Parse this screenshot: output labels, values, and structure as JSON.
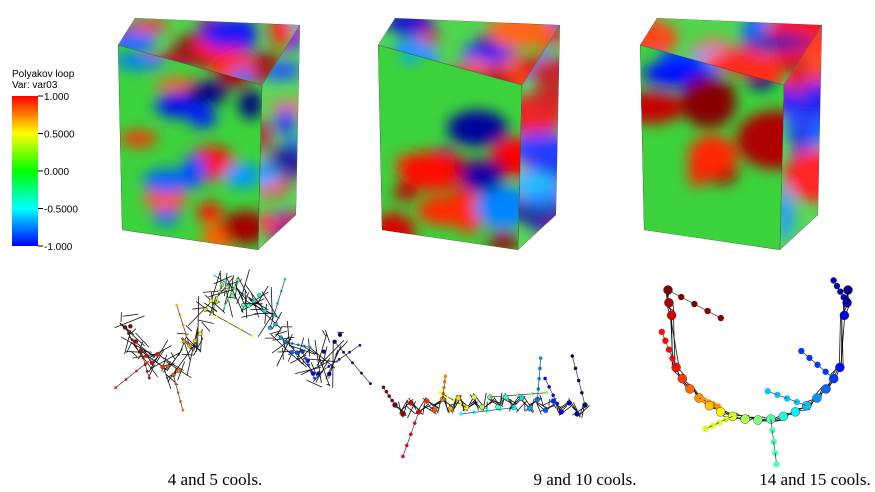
{
  "colorbar": {
    "title": "Polyakov loop",
    "variable": "Var: var03",
    "ticks": [
      {
        "value": 1,
        "label": "1.000"
      },
      {
        "value": 0.5,
        "label": "0.5000"
      },
      {
        "value": 0,
        "label": "0.000"
      },
      {
        "value": -0.5,
        "label": "-0.5000"
      },
      {
        "value": -1,
        "label": "-1.000"
      }
    ]
  },
  "panels": [
    {
      "caption": "4 and 5 cools."
    },
    {
      "caption": "9 and 10 cools."
    },
    {
      "caption": "14 and 15 cools."
    }
  ]
}
